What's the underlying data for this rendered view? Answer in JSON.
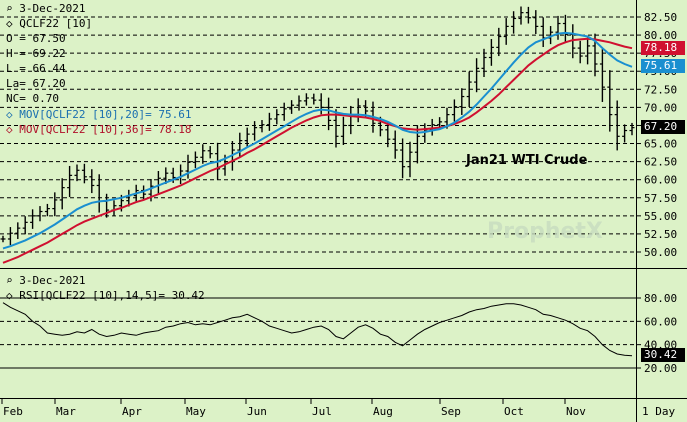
{
  "header": {
    "date": "3-Dec-2021",
    "symbol": "QCLF22 [10]",
    "ohlc": [
      "O = 67.50",
      "H = 69.22",
      "L = 66.44",
      "La= 67.20",
      "NC= 0.70"
    ],
    "mov20": "MOV[QCLF22 [10],20]= 75.61",
    "mov36": "MOV[QCLF22 [10],36]= 78.18"
  },
  "rsi_header": {
    "date": "3-Dec-2021",
    "label": "RSI[QCLF22 [10],14,5]= 30.42"
  },
  "annotation": "Jan21 WTI Crude",
  "watermark": "ProphetX",
  "tags": {
    "mov36": "78.18",
    "mov20": "75.61",
    "last": "67.20",
    "rsi": "30.42"
  },
  "price_axis": [
    "82.50",
    "80.00",
    "77.50",
    "75.00",
    "72.50",
    "70.00",
    "67.50",
    "65.00",
    "62.50",
    "60.00",
    "57.50",
    "55.00",
    "52.50",
    "50.00"
  ],
  "rsi_axis": [
    "80.00",
    "60.00",
    "40.00",
    "20.00"
  ],
  "months": [
    "Feb",
    "Mar",
    "Apr",
    "May",
    "Jun",
    "Jul",
    "Aug",
    "Sep",
    "Oct",
    "Nov"
  ],
  "period": "1 Day",
  "colors": {
    "bg": "#dcf2c7",
    "ma20": "#1a8fd0",
    "ma36": "#d01030",
    "price": "#000000"
  },
  "chart_data": {
    "type": "line",
    "price_close": [
      51.8,
      52.6,
      53.3,
      54.1,
      55.0,
      55.6,
      56.0,
      57.2,
      58.9,
      60.6,
      61.3,
      60.4,
      59.2,
      57.0,
      55.8,
      56.4,
      57.1,
      57.8,
      58.5,
      58.0,
      59.1,
      60.2,
      60.9,
      60.3,
      61.2,
      62.4,
      63.1,
      64.0,
      63.6,
      61.5,
      62.5,
      64.1,
      65.4,
      66.3,
      67.2,
      67.6,
      68.4,
      69.0,
      69.8,
      70.3,
      70.9,
      71.3,
      71.0,
      70.0,
      68.2,
      66.0,
      67.5,
      69.0,
      70.2,
      69.5,
      67.8,
      66.9,
      65.6,
      64.1,
      61.8,
      63.8,
      66.0,
      66.9,
      67.6,
      68.0,
      69.0,
      70.1,
      71.5,
      73.5,
      75.4,
      76.9,
      78.3,
      79.8,
      81.2,
      82.3,
      83.1,
      82.4,
      81.2,
      79.6,
      80.4,
      81.6,
      80.1,
      78.2,
      77.1,
      78.5,
      76.0,
      72.8,
      69.0,
      66.0,
      66.8,
      67.2
    ],
    "ma20": [
      50.5,
      50.8,
      51.2,
      51.6,
      52.1,
      52.6,
      53.2,
      53.8,
      54.5,
      55.2,
      55.9,
      56.4,
      56.8,
      57.0,
      57.1,
      57.3,
      57.5,
      57.8,
      58.1,
      58.4,
      58.8,
      59.2,
      59.6,
      60.0,
      60.4,
      60.9,
      61.4,
      61.9,
      62.3,
      62.5,
      62.9,
      63.4,
      63.9,
      64.5,
      65.0,
      65.6,
      66.2,
      66.8,
      67.4,
      68.0,
      68.6,
      69.1,
      69.5,
      69.7,
      69.6,
      69.3,
      69.1,
      69.0,
      69.0,
      68.9,
      68.7,
      68.4,
      68.0,
      67.5,
      66.9,
      66.6,
      66.5,
      66.6,
      66.8,
      67.0,
      67.4,
      67.9,
      68.6,
      69.4,
      70.4,
      71.5,
      72.6,
      73.8,
      75.0,
      76.2,
      77.3,
      78.3,
      79.0,
      79.4,
      79.8,
      80.2,
      80.3,
      80.2,
      80.0,
      79.8,
      79.2,
      78.2,
      77.3,
      76.5,
      76.0,
      75.61
    ],
    "ma36": [
      48.5,
      48.9,
      49.3,
      49.8,
      50.3,
      50.8,
      51.3,
      51.9,
      52.5,
      53.1,
      53.7,
      54.2,
      54.6,
      55.0,
      55.4,
      55.8,
      56.1,
      56.5,
      56.9,
      57.2,
      57.6,
      58.0,
      58.4,
      58.8,
      59.2,
      59.7,
      60.2,
      60.7,
      61.2,
      61.6,
      62.1,
      62.6,
      63.1,
      63.7,
      64.2,
      64.8,
      65.4,
      66.0,
      66.6,
      67.2,
      67.7,
      68.2,
      68.6,
      68.9,
      69.0,
      69.0,
      68.9,
      68.8,
      68.7,
      68.6,
      68.4,
      68.1,
      67.7,
      67.4,
      67.1,
      67.0,
      66.9,
      67.0,
      67.1,
      67.2,
      67.4,
      67.7,
      68.1,
      68.6,
      69.3,
      70.1,
      70.9,
      71.8,
      72.8,
      73.8,
      74.8,
      75.8,
      76.6,
      77.3,
      78.0,
      78.6,
      79.0,
      79.3,
      79.4,
      79.5,
      79.4,
      79.2,
      79.0,
      78.7,
      78.4,
      78.18
    ],
    "rsi": [
      76,
      72,
      69,
      66,
      60,
      56,
      50,
      49,
      48,
      49,
      51,
      50,
      53,
      49,
      47,
      48,
      50,
      49,
      48,
      50,
      51,
      52,
      55,
      56,
      58,
      59,
      57,
      58,
      57,
      59,
      61,
      63,
      64,
      66,
      63,
      60,
      56,
      54,
      52,
      50,
      51,
      53,
      55,
      56,
      53,
      47,
      45,
      50,
      55,
      57,
      54,
      49,
      47,
      42,
      39,
      44,
      49,
      53,
      56,
      59,
      61,
      63,
      65,
      68,
      70,
      71,
      73,
      74,
      75,
      75,
      74,
      72,
      70,
      66,
      65,
      63,
      61,
      58,
      54,
      52,
      47,
      40,
      35,
      32,
      31,
      30.42
    ]
  }
}
